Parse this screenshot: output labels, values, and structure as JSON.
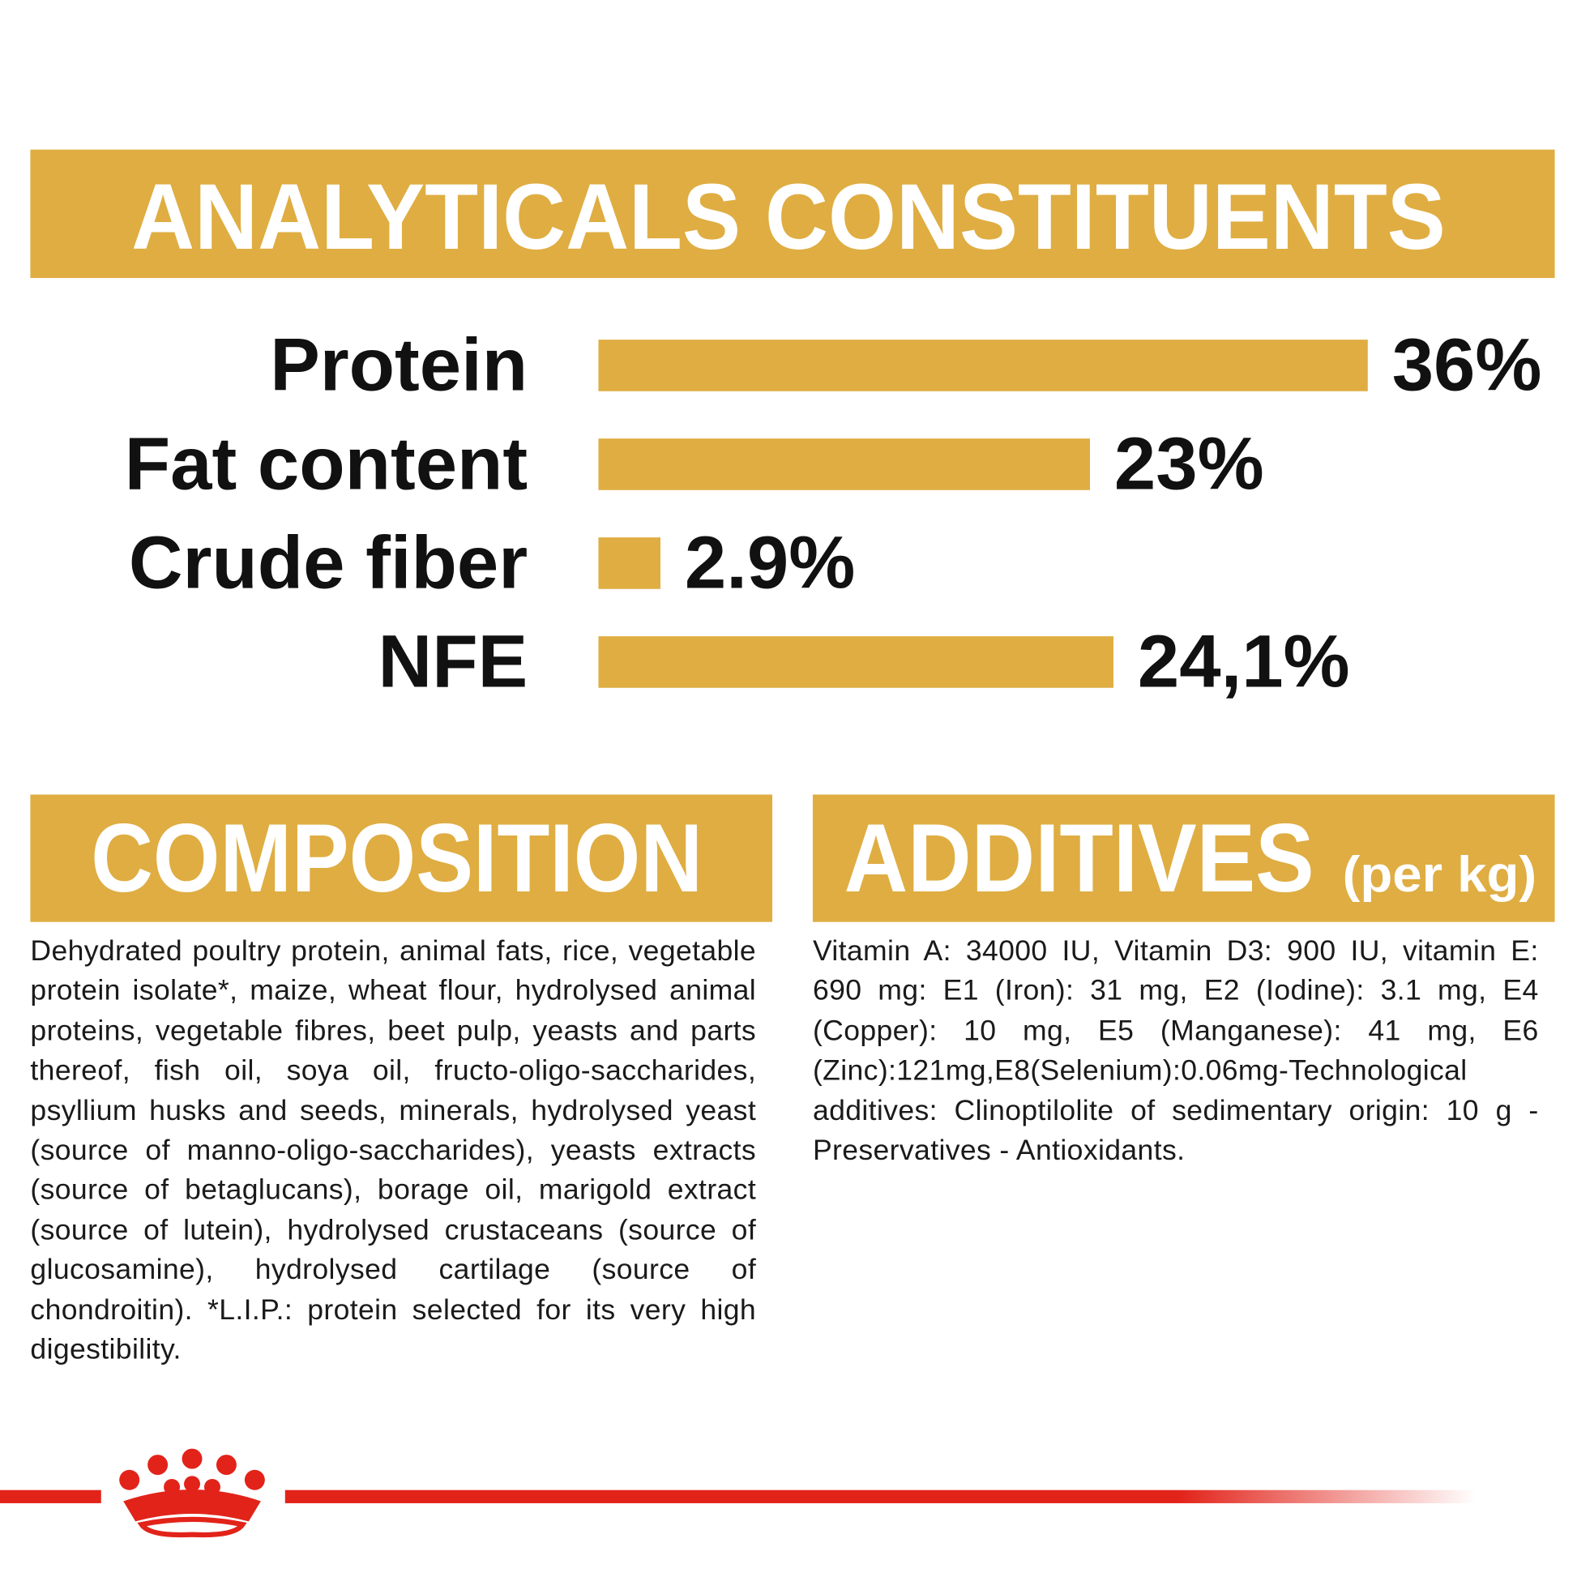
{
  "chart_data": {
    "type": "bar",
    "title": "ANALYTICALS CONSTITUENTS",
    "categories": [
      "Protein",
      "Fat content",
      "Crude fiber",
      "NFE"
    ],
    "values": [
      36,
      23,
      2.9,
      24.1
    ],
    "value_labels": [
      "36%",
      "23%",
      "2.9%",
      "24,1%"
    ],
    "color": "#dfad42"
  },
  "composition": {
    "heading": "COMPOSITION",
    "text": "Dehydrated poultry protein, animal fats, rice, vegetable protein isolate*, maize, wheat flour, hydrolysed animal proteins, vegetable fibres, beet pulp, yeasts and parts thereof, fish oil, soya oil, fructo-oligo-saccharides, psyllium husks and seeds, minerals, hydrolysed yeast (source of manno-oligo-saccharides), yeasts extracts (source of betaglucans), borage oil, marigold extract (source of lutein), hydrolysed crustaceans (source of glucosamine), hydrolysed cartilage (source of chondroitin). *L.I.P.: protein selected for its very high digestibility."
  },
  "additives": {
    "heading": "ADDITIVES",
    "subheading": "(per kg)",
    "text": "Vitamin A: 34000 IU, Vitamin D3: 900 IU, vitamin E: 690 mg: E1 (Iron): 31 mg, E2 (Iodine): 3.1 mg, E4 (Copper): 10 mg, E5 (Manganese): 41 mg, E6 (Zinc):121mg,E8(Selenium):0.06mg-Technological additives: Clinoptilolite of sedimentary origin: 10 g - Preservatives - Antioxidants."
  }
}
